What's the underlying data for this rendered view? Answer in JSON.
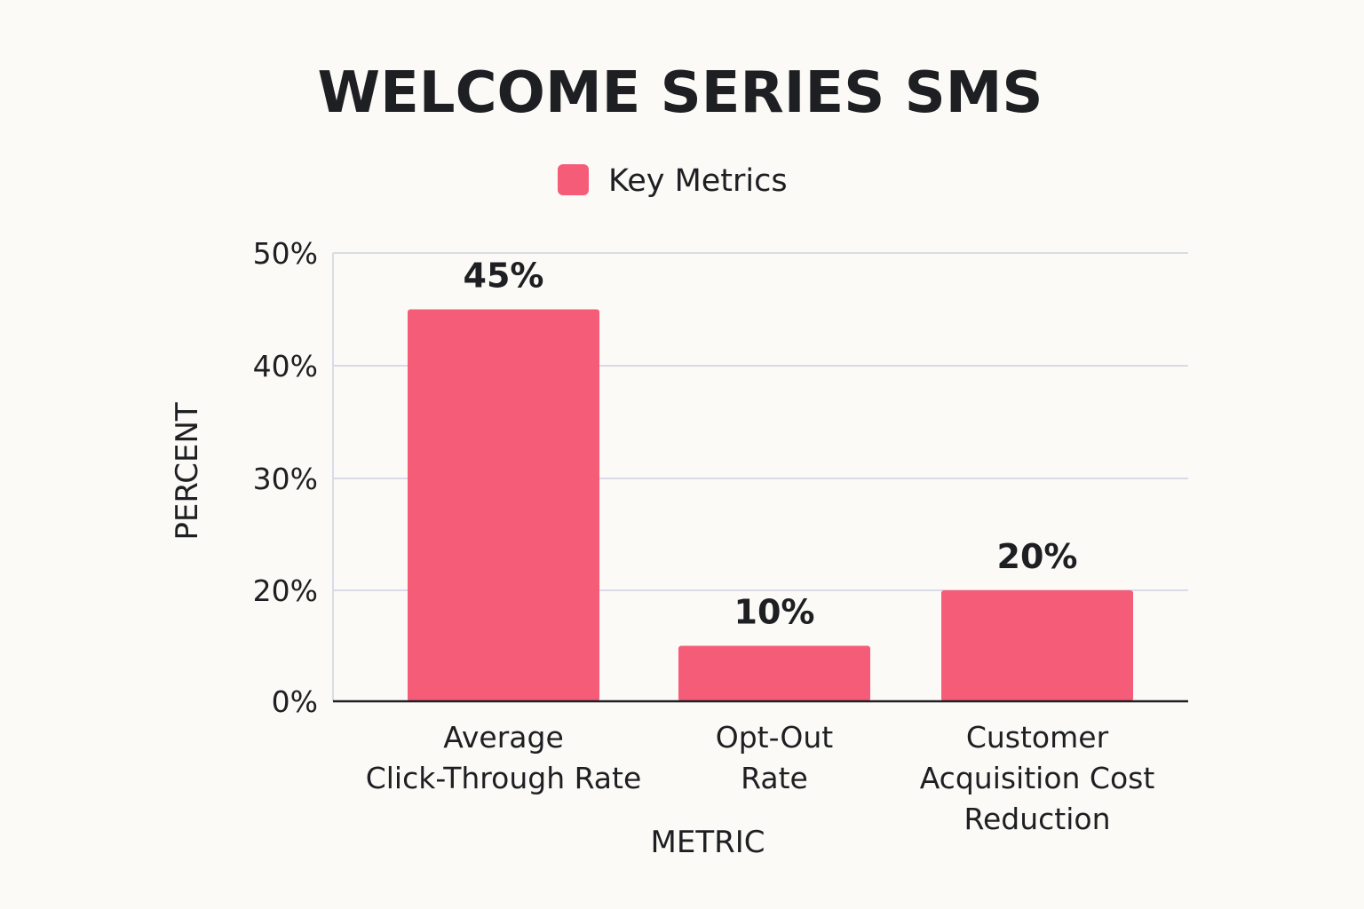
{
  "chart_data": {
    "type": "bar",
    "title": "WELCOME SERIES SMS",
    "xlabel": "METRIC",
    "ylabel": "PERCENT",
    "categories": [
      "Average Click-Through Rate",
      "Opt-Out Rate",
      "Customer Acquisition Cost Reduction"
    ],
    "category_lines": [
      [
        "Average",
        "Click-Through Rate"
      ],
      [
        "Opt-Out",
        "Rate"
      ],
      [
        "Customer",
        "Acquisition Cost",
        "Reduction"
      ]
    ],
    "series": [
      {
        "name": "Key Metrics",
        "values": [
          45,
          10,
          20
        ]
      }
    ],
    "data_labels": [
      "45%",
      "10%",
      "20%"
    ],
    "y_ticks": [
      0,
      20,
      30,
      40,
      50
    ],
    "y_tick_labels": [
      "0%",
      "20%",
      "30%",
      "40%",
      "50%"
    ],
    "ylim": [
      0,
      50
    ],
    "grid": true,
    "legend_position": "top-center",
    "colors": {
      "bar": "#f55c78",
      "grid": "#d9dbe6",
      "axis": "#1e1f22",
      "text": "#1e1f22"
    }
  }
}
